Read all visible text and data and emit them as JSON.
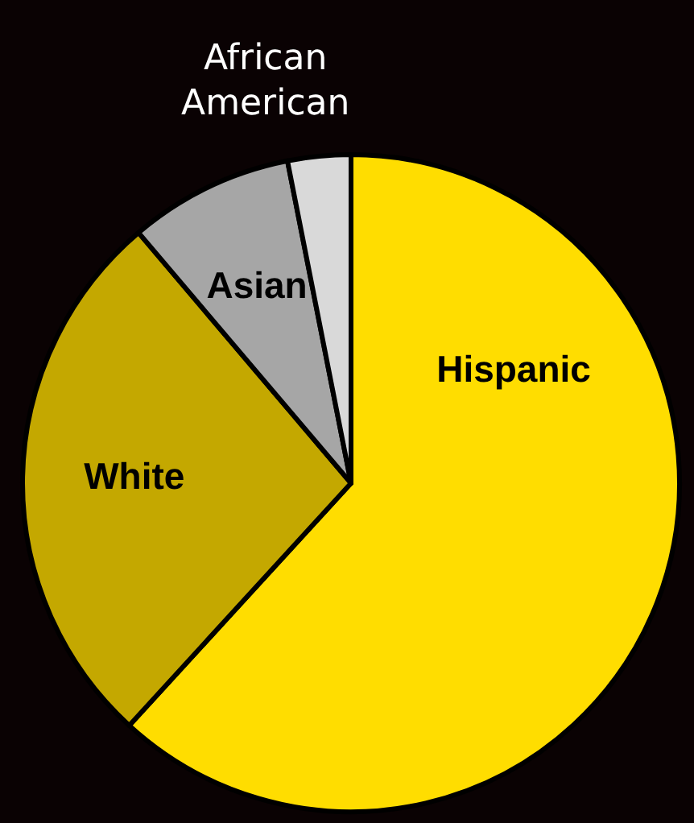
{
  "chart_data": {
    "type": "pie",
    "categories": [
      "Hispanic",
      "White",
      "Asian",
      "African American"
    ],
    "values": [
      61.8,
      27,
      8.1,
      3.1
    ],
    "colors": [
      "#ffdd00",
      "#c4a800",
      "#a6a6a6",
      "#d9d9d9"
    ]
  }
}
